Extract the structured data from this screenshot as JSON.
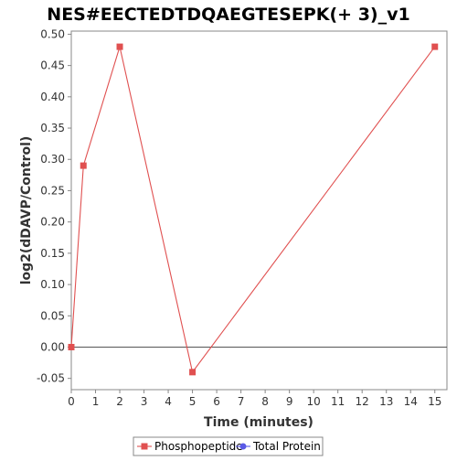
{
  "chart_data": {
    "type": "line",
    "title": "NES#EECTEDTDQAEGTESEPK(+ 3)_v1",
    "xlabel": "Time (minutes)",
    "ylabel": "log2(dDAVP/Control)",
    "xlim": [
      0,
      15.5
    ],
    "ylim": [
      -0.068,
      0.505
    ],
    "x_ticks": [
      "0",
      "1",
      "2",
      "3",
      "4",
      "5",
      "6",
      "7",
      "8",
      "9",
      "10",
      "11",
      "12",
      "13",
      "14",
      "15"
    ],
    "y_ticks": [
      "-0.05",
      "0.00",
      "0.05",
      "0.10",
      "0.15",
      "0.20",
      "0.25",
      "0.30",
      "0.35",
      "0.40",
      "0.45",
      "0.50"
    ],
    "grid": false,
    "legend_position": "bottom",
    "series": [
      {
        "name": "Phosphopeptide",
        "color": "#e05050",
        "marker": "square",
        "x": [
          0,
          0.5,
          2,
          5,
          15
        ],
        "y": [
          0.0,
          0.29,
          0.48,
          -0.04,
          0.48
        ]
      },
      {
        "name": "Total Protein",
        "color": "#5a5ae6",
        "marker": "circle",
        "x": [],
        "y": []
      }
    ]
  }
}
